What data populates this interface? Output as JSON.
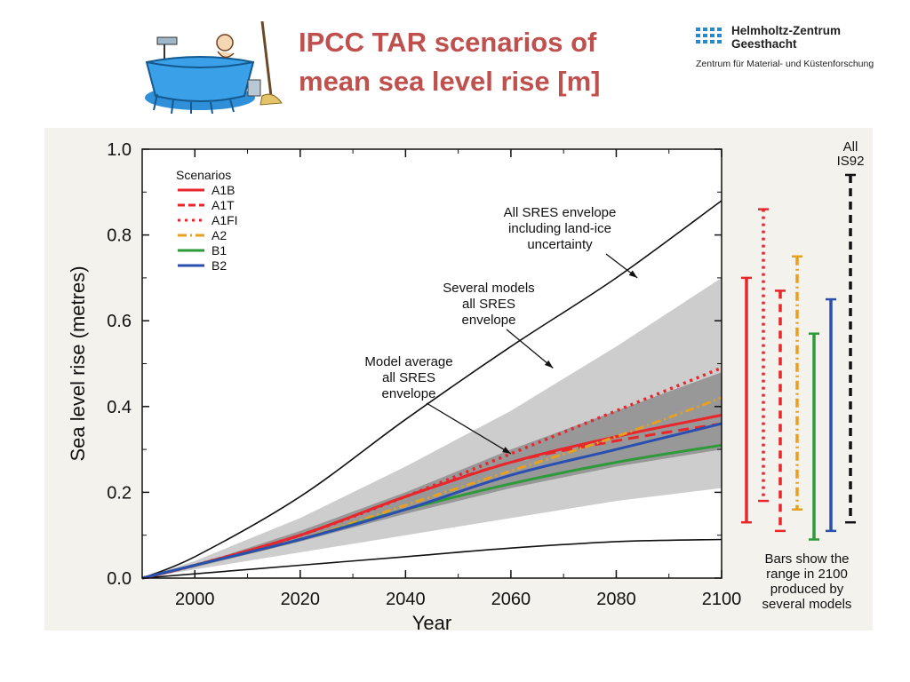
{
  "slide": {
    "title_line1": "IPCC TAR scenarios of",
    "title_line2": "mean sea level rise [m]"
  },
  "logo": {
    "name_line1": "Helmholtz-Zentrum",
    "name_line2": "Geesthacht",
    "subtitle": "Zentrum für Material- und Küstenforschung",
    "dot_color": "#1a8fd6"
  },
  "chart_data": {
    "type": "line",
    "title": "",
    "xlabel": "Year",
    "ylabel": "Sea level rise (metres)",
    "xlim": [
      1990,
      2100
    ],
    "ylim": [
      0,
      1.0
    ],
    "xticks": [
      "2000",
      "2020",
      "2040",
      "2060",
      "2080",
      "2100"
    ],
    "yticks": [
      "0.0",
      "0.2",
      "0.4",
      "0.6",
      "0.8",
      "1.0"
    ],
    "grid": false,
    "legend_position": "top-left",
    "legend_title": "Scenarios",
    "series": [
      {
        "name": "A1B",
        "color": "#e8262b",
        "dash": "solid",
        "x": [
          1990,
          2000,
          2020,
          2040,
          2060,
          2080,
          2100
        ],
        "y": [
          0,
          0.03,
          0.1,
          0.19,
          0.27,
          0.33,
          0.38
        ]
      },
      {
        "name": "A1T",
        "color": "#e8262b",
        "dash": "long",
        "x": [
          1990,
          2000,
          2020,
          2040,
          2060,
          2080,
          2100
        ],
        "y": [
          0,
          0.03,
          0.1,
          0.19,
          0.27,
          0.32,
          0.36
        ]
      },
      {
        "name": "A1FI",
        "color": "#e8262b",
        "dash": "dotted",
        "x": [
          1990,
          2000,
          2020,
          2040,
          2060,
          2080,
          2100
        ],
        "y": [
          0,
          0.03,
          0.1,
          0.19,
          0.29,
          0.39,
          0.49
        ]
      },
      {
        "name": "A2",
        "color": "#e8a020",
        "dash": "dashdot",
        "x": [
          1990,
          2000,
          2020,
          2040,
          2060,
          2080,
          2100
        ],
        "y": [
          0,
          0.03,
          0.09,
          0.17,
          0.25,
          0.33,
          0.42
        ]
      },
      {
        "name": "B1",
        "color": "#2e9a3a",
        "dash": "solid",
        "x": [
          1990,
          2000,
          2020,
          2040,
          2060,
          2080,
          2100
        ],
        "y": [
          0,
          0.03,
          0.09,
          0.16,
          0.22,
          0.27,
          0.31
        ]
      },
      {
        "name": "B2",
        "color": "#2b4fb0",
        "dash": "solid",
        "x": [
          1990,
          2000,
          2020,
          2040,
          2060,
          2080,
          2100
        ],
        "y": [
          0,
          0.03,
          0.09,
          0.16,
          0.24,
          0.3,
          0.36
        ]
      }
    ],
    "envelopes": [
      {
        "label": "Several models all SRES envelope",
        "color": "#c8c8c8",
        "x": [
          1990,
          2000,
          2020,
          2040,
          2060,
          2080,
          2100
        ],
        "upper": [
          0,
          0.04,
          0.14,
          0.26,
          0.39,
          0.54,
          0.7
        ],
        "lower": [
          0,
          0.02,
          0.06,
          0.1,
          0.14,
          0.18,
          0.21
        ]
      },
      {
        "label": "Model average all SRES envelope",
        "color": "#8e8e8e",
        "x": [
          1990,
          2000,
          2020,
          2040,
          2060,
          2080,
          2100
        ],
        "upper": [
          0,
          0.03,
          0.11,
          0.2,
          0.3,
          0.39,
          0.48
        ],
        "lower": [
          0,
          0.025,
          0.085,
          0.15,
          0.21,
          0.26,
          0.3
        ]
      }
    ],
    "outer_lines": [
      {
        "label": "All SRES envelope including land-ice uncertainty",
        "x": [
          1990,
          2000,
          2020,
          2040,
          2060,
          2080,
          2100
        ],
        "upper": [
          0,
          0.05,
          0.19,
          0.37,
          0.54,
          0.7,
          0.88
        ],
        "lower": [
          0,
          0.01,
          0.03,
          0.05,
          0.07,
          0.085,
          0.09
        ]
      }
    ],
    "annotations": [
      {
        "lines": [
          "All SRES envelope",
          "including land-ice",
          "uncertainty"
        ],
        "points_to": [
          2084,
          0.7
        ]
      },
      {
        "lines": [
          "Several models",
          "all SRES",
          "envelope"
        ],
        "points_to": [
          2068,
          0.49
        ]
      },
      {
        "lines": [
          "Model average",
          "all SRES",
          "envelope"
        ],
        "points_to": [
          2060,
          0.29
        ]
      }
    ],
    "range_bars_2100": [
      {
        "name": "A1B",
        "color": "#e8262b",
        "dash": "solid",
        "low": 0.13,
        "high": 0.7
      },
      {
        "name": "A1FI",
        "color": "#e8262b",
        "dash": "dotted",
        "low": 0.18,
        "high": 0.86
      },
      {
        "name": "A1T",
        "color": "#e8262b",
        "dash": "long",
        "low": 0.11,
        "high": 0.67
      },
      {
        "name": "A2",
        "color": "#e8a020",
        "dash": "dashdot",
        "low": 0.16,
        "high": 0.75
      },
      {
        "name": "B1",
        "color": "#2e9a3a",
        "dash": "solid",
        "low": 0.09,
        "high": 0.57
      },
      {
        "name": "B2",
        "color": "#2b4fb0",
        "dash": "solid",
        "low": 0.11,
        "high": 0.65
      },
      {
        "name": "All IS92",
        "color": "#111111",
        "dash": "long",
        "low": 0.13,
        "high": 0.94
      }
    ],
    "is92_label": [
      "All",
      "IS92"
    ],
    "bars_note": [
      "Bars show the",
      "range in 2100",
      "produced by",
      "several models"
    ]
  }
}
